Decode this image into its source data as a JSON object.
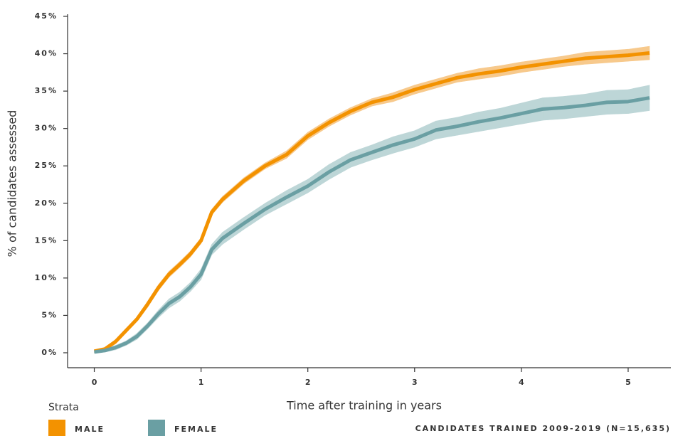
{
  "chart_data": {
    "type": "line",
    "x_label": "Time after training in years",
    "y_label": "% of candidates assessed",
    "legend_title": "Strata",
    "caption": "CANDIDATES TRAINED 2009-2019 (N=15,635)",
    "xlim": [
      -0.25,
      5.4
    ],
    "xticks": [
      0,
      1,
      2,
      3,
      4,
      5
    ],
    "ylim": [
      -2,
      45
    ],
    "yticks": [
      {
        "value": 0,
        "label": "0%"
      },
      {
        "value": 5,
        "label": "5%"
      },
      {
        "value": 10,
        "label": "10%"
      },
      {
        "value": 15,
        "label": "15%"
      },
      {
        "value": 20,
        "label": "20%"
      },
      {
        "value": 25,
        "label": "25%"
      },
      {
        "value": 30,
        "label": "30%"
      },
      {
        "value": 35,
        "label": "35%"
      },
      {
        "value": 40,
        "label": "40%"
      },
      {
        "value": 45,
        "label": "45%"
      }
    ],
    "x": [
      0,
      0.1,
      0.2,
      0.3,
      0.4,
      0.5,
      0.6,
      0.7,
      0.8,
      0.9,
      1.0,
      1.1,
      1.2,
      1.4,
      1.6,
      1.8,
      2.0,
      2.2,
      2.4,
      2.6,
      2.8,
      3.0,
      3.2,
      3.4,
      3.6,
      3.8,
      4.0,
      4.2,
      4.4,
      4.6,
      4.8,
      5.0,
      5.2
    ],
    "series": [
      {
        "name": "MALE",
        "color": "#f39200",
        "band_color": "#f7c98c",
        "values": [
          0.2,
          0.5,
          1.5,
          3.0,
          4.5,
          6.5,
          8.7,
          10.5,
          11.8,
          13.2,
          15.0,
          18.8,
          20.5,
          23.0,
          25.0,
          26.5,
          29.0,
          30.8,
          32.3,
          33.5,
          34.2,
          35.2,
          36.0,
          36.8,
          37.3,
          37.7,
          38.2,
          38.6,
          39.0,
          39.4,
          39.6,
          39.8,
          40.1
        ],
        "lower": [
          0.0,
          0.3,
          1.2,
          2.7,
          4.2,
          6.1,
          8.3,
          10.1,
          11.4,
          12.8,
          14.6,
          18.4,
          20.1,
          22.6,
          24.6,
          26.0,
          28.5,
          30.3,
          31.8,
          33.0,
          33.6,
          34.6,
          35.4,
          36.2,
          36.6,
          37.0,
          37.5,
          37.9,
          38.3,
          38.6,
          38.8,
          39.0,
          39.2
        ],
        "upper": [
          0.4,
          0.7,
          1.8,
          3.3,
          4.8,
          6.9,
          9.1,
          10.9,
          12.2,
          13.6,
          15.4,
          19.2,
          20.9,
          23.4,
          25.4,
          27.0,
          29.5,
          31.3,
          32.8,
          34.0,
          34.8,
          35.8,
          36.6,
          37.4,
          38.0,
          38.4,
          38.9,
          39.3,
          39.7,
          40.2,
          40.4,
          40.6,
          41.0
        ]
      },
      {
        "name": "FEMALE",
        "color": "#6a9fa3",
        "band_color": "#bdd6d7",
        "values": [
          0.1,
          0.3,
          0.7,
          1.3,
          2.2,
          3.6,
          5.2,
          6.6,
          7.5,
          8.8,
          10.5,
          13.8,
          15.3,
          17.3,
          19.2,
          20.8,
          22.3,
          24.2,
          25.8,
          26.8,
          27.8,
          28.6,
          29.8,
          30.3,
          30.9,
          31.4,
          32.0,
          32.6,
          32.8,
          33.1,
          33.5,
          33.6,
          34.1
        ],
        "lower": [
          0.0,
          0.1,
          0.4,
          1.0,
          1.8,
          3.2,
          4.7,
          6.0,
          6.9,
          8.2,
          9.8,
          13.1,
          14.5,
          16.5,
          18.4,
          19.9,
          21.4,
          23.2,
          24.8,
          25.8,
          26.7,
          27.5,
          28.6,
          29.1,
          29.6,
          30.1,
          30.6,
          31.1,
          31.3,
          31.6,
          31.9,
          32.0,
          32.4
        ],
        "upper": [
          0.2,
          0.5,
          1.0,
          1.6,
          2.6,
          4.0,
          5.7,
          7.2,
          8.1,
          9.4,
          11.2,
          14.5,
          16.1,
          18.1,
          20.0,
          21.7,
          23.2,
          25.2,
          26.8,
          27.8,
          28.9,
          29.7,
          31.0,
          31.5,
          32.2,
          32.7,
          33.4,
          34.1,
          34.3,
          34.6,
          35.1,
          35.2,
          35.8
        ]
      }
    ]
  }
}
